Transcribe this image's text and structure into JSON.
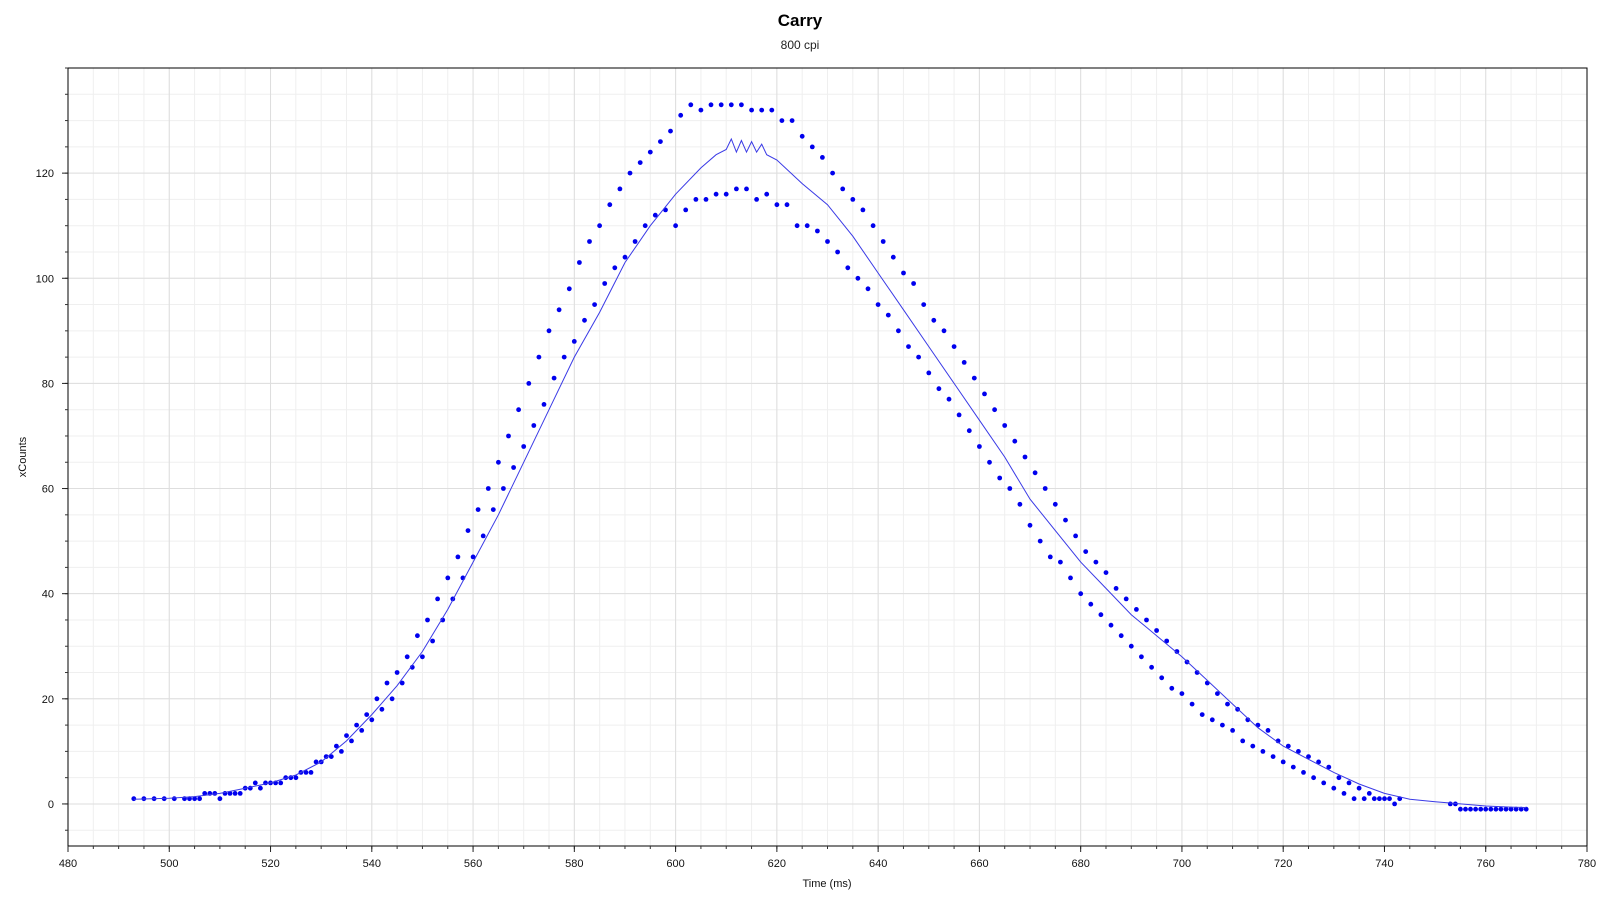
{
  "chart_data": {
    "type": "scatter",
    "title": "Carry",
    "subtitle": "800 cpi",
    "xlabel": "Time (ms)",
    "ylabel": "xCounts",
    "xlim": [
      480,
      780
    ],
    "ylim": [
      -8,
      140
    ],
    "x_ticks": [
      480,
      500,
      520,
      540,
      560,
      580,
      600,
      620,
      640,
      660,
      680,
      700,
      720,
      740,
      760,
      780
    ],
    "y_ticks": [
      0,
      20,
      40,
      60,
      80,
      100,
      120
    ],
    "grid": true,
    "legend": "none",
    "series": [
      {
        "style": "dots",
        "color": "#0000ee",
        "points": [
          [
            493,
            1
          ],
          [
            495,
            1
          ],
          [
            497,
            1
          ],
          [
            499,
            1
          ],
          [
            501,
            1
          ],
          [
            503,
            1
          ],
          [
            505,
            1
          ],
          [
            507,
            2
          ],
          [
            509,
            2
          ],
          [
            511,
            2
          ],
          [
            513,
            2
          ],
          [
            515,
            3
          ],
          [
            517,
            4
          ],
          [
            519,
            4
          ],
          [
            521,
            4
          ],
          [
            523,
            5
          ],
          [
            525,
            5
          ],
          [
            527,
            6
          ],
          [
            529,
            8
          ],
          [
            531,
            9
          ],
          [
            533,
            11
          ],
          [
            535,
            13
          ],
          [
            537,
            15
          ],
          [
            539,
            17
          ],
          [
            541,
            20
          ],
          [
            543,
            23
          ],
          [
            545,
            25
          ],
          [
            547,
            28
          ],
          [
            549,
            32
          ],
          [
            551,
            35
          ],
          [
            553,
            39
          ],
          [
            555,
            43
          ],
          [
            557,
            47
          ],
          [
            559,
            52
          ],
          [
            561,
            56
          ],
          [
            563,
            60
          ],
          [
            565,
            65
          ],
          [
            567,
            70
          ],
          [
            569,
            75
          ],
          [
            571,
            80
          ],
          [
            573,
            85
          ],
          [
            575,
            90
          ],
          [
            577,
            94
          ],
          [
            579,
            98
          ],
          [
            581,
            103
          ],
          [
            583,
            107
          ],
          [
            585,
            110
          ],
          [
            587,
            114
          ],
          [
            589,
            117
          ],
          [
            591,
            120
          ],
          [
            593,
            122
          ],
          [
            595,
            124
          ],
          [
            597,
            126
          ],
          [
            599,
            128
          ],
          [
            601,
            131
          ],
          [
            603,
            133
          ],
          [
            605,
            132
          ],
          [
            607,
            133
          ],
          [
            609,
            133
          ],
          [
            611,
            133
          ],
          [
            613,
            133
          ],
          [
            615,
            132
          ],
          [
            617,
            132
          ],
          [
            619,
            132
          ],
          [
            621,
            130
          ],
          [
            623,
            130
          ],
          [
            625,
            127
          ],
          [
            627,
            125
          ],
          [
            629,
            123
          ],
          [
            631,
            120
          ],
          [
            633,
            117
          ],
          [
            635,
            115
          ],
          [
            637,
            113
          ],
          [
            639,
            110
          ],
          [
            641,
            107
          ],
          [
            643,
            104
          ],
          [
            645,
            101
          ],
          [
            647,
            99
          ],
          [
            649,
            95
          ],
          [
            651,
            92
          ],
          [
            653,
            90
          ],
          [
            655,
            87
          ],
          [
            657,
            84
          ],
          [
            659,
            81
          ],
          [
            661,
            78
          ],
          [
            663,
            75
          ],
          [
            665,
            72
          ],
          [
            667,
            69
          ],
          [
            669,
            66
          ],
          [
            671,
            63
          ],
          [
            673,
            60
          ],
          [
            675,
            57
          ],
          [
            677,
            54
          ],
          [
            679,
            51
          ],
          [
            681,
            48
          ],
          [
            683,
            46
          ],
          [
            685,
            44
          ],
          [
            687,
            41
          ],
          [
            689,
            39
          ],
          [
            691,
            37
          ],
          [
            693,
            35
          ],
          [
            695,
            33
          ],
          [
            697,
            31
          ],
          [
            699,
            29
          ],
          [
            701,
            27
          ],
          [
            703,
            25
          ],
          [
            705,
            23
          ],
          [
            707,
            21
          ],
          [
            709,
            19
          ],
          [
            711,
            18
          ],
          [
            713,
            16
          ],
          [
            715,
            15
          ],
          [
            717,
            14
          ],
          [
            719,
            12
          ],
          [
            721,
            11
          ],
          [
            723,
            10
          ],
          [
            725,
            9
          ],
          [
            727,
            8
          ],
          [
            729,
            7
          ],
          [
            731,
            5
          ],
          [
            733,
            4
          ],
          [
            735,
            3
          ],
          [
            737,
            2
          ],
          [
            739,
            1
          ],
          [
            741,
            1
          ],
          [
            743,
            1
          ],
          [
            753,
            0
          ],
          [
            755,
            -1
          ],
          [
            757,
            -1
          ],
          [
            759,
            -1
          ],
          [
            761,
            -1
          ],
          [
            763,
            -1
          ],
          [
            765,
            -1
          ],
          [
            767,
            -1
          ]
        ]
      },
      {
        "style": "dots",
        "color": "#0000ee",
        "points": [
          [
            504,
            1
          ],
          [
            506,
            1
          ],
          [
            508,
            2
          ],
          [
            510,
            1
          ],
          [
            512,
            2
          ],
          [
            514,
            2
          ],
          [
            516,
            3
          ],
          [
            518,
            3
          ],
          [
            520,
            4
          ],
          [
            522,
            4
          ],
          [
            524,
            5
          ],
          [
            526,
            6
          ],
          [
            528,
            6
          ],
          [
            530,
            8
          ],
          [
            532,
            9
          ],
          [
            534,
            10
          ],
          [
            536,
            12
          ],
          [
            538,
            14
          ],
          [
            540,
            16
          ],
          [
            542,
            18
          ],
          [
            544,
            20
          ],
          [
            546,
            23
          ],
          [
            548,
            26
          ],
          [
            550,
            28
          ],
          [
            552,
            31
          ],
          [
            554,
            35
          ],
          [
            556,
            39
          ],
          [
            558,
            43
          ],
          [
            560,
            47
          ],
          [
            562,
            51
          ],
          [
            564,
            56
          ],
          [
            566,
            60
          ],
          [
            568,
            64
          ],
          [
            570,
            68
          ],
          [
            572,
            72
          ],
          [
            574,
            76
          ],
          [
            576,
            81
          ],
          [
            578,
            85
          ],
          [
            580,
            88
          ],
          [
            582,
            92
          ],
          [
            584,
            95
          ],
          [
            586,
            99
          ],
          [
            588,
            102
          ],
          [
            590,
            104
          ],
          [
            592,
            107
          ],
          [
            594,
            110
          ],
          [
            596,
            112
          ],
          [
            598,
            113
          ],
          [
            600,
            110
          ],
          [
            602,
            113
          ],
          [
            604,
            115
          ],
          [
            606,
            115
          ],
          [
            608,
            116
          ],
          [
            610,
            116
          ],
          [
            612,
            117
          ],
          [
            614,
            117
          ],
          [
            616,
            115
          ],
          [
            618,
            116
          ],
          [
            620,
            114
          ],
          [
            622,
            114
          ],
          [
            624,
            110
          ],
          [
            626,
            110
          ],
          [
            628,
            109
          ],
          [
            630,
            107
          ],
          [
            632,
            105
          ],
          [
            634,
            102
          ],
          [
            636,
            100
          ],
          [
            638,
            98
          ],
          [
            640,
            95
          ],
          [
            642,
            93
          ],
          [
            644,
            90
          ],
          [
            646,
            87
          ],
          [
            648,
            85
          ],
          [
            650,
            82
          ],
          [
            652,
            79
          ],
          [
            654,
            77
          ],
          [
            656,
            74
          ],
          [
            658,
            71
          ],
          [
            660,
            68
          ],
          [
            662,
            65
          ],
          [
            664,
            62
          ],
          [
            666,
            60
          ],
          [
            668,
            57
          ],
          [
            670,
            53
          ],
          [
            672,
            50
          ],
          [
            674,
            47
          ],
          [
            676,
            46
          ],
          [
            678,
            43
          ],
          [
            680,
            40
          ],
          [
            682,
            38
          ],
          [
            684,
            36
          ],
          [
            686,
            34
          ],
          [
            688,
            32
          ],
          [
            690,
            30
          ],
          [
            692,
            28
          ],
          [
            694,
            26
          ],
          [
            696,
            24
          ],
          [
            698,
            22
          ],
          [
            700,
            21
          ],
          [
            702,
            19
          ],
          [
            704,
            17
          ],
          [
            706,
            16
          ],
          [
            708,
            15
          ],
          [
            710,
            14
          ],
          [
            712,
            12
          ],
          [
            714,
            11
          ],
          [
            716,
            10
          ],
          [
            718,
            9
          ],
          [
            720,
            8
          ],
          [
            722,
            7
          ],
          [
            724,
            6
          ],
          [
            726,
            5
          ],
          [
            728,
            4
          ],
          [
            730,
            3
          ],
          [
            732,
            2
          ],
          [
            734,
            1
          ],
          [
            736,
            1
          ],
          [
            738,
            1
          ],
          [
            740,
            1
          ],
          [
            742,
            0
          ],
          [
            754,
            0
          ],
          [
            756,
            -1
          ],
          [
            758,
            -1
          ],
          [
            760,
            -1
          ],
          [
            762,
            -1
          ],
          [
            764,
            -1
          ],
          [
            766,
            -1
          ],
          [
            768,
            -1
          ]
        ]
      },
      {
        "style": "line",
        "color": "#3a3ae6",
        "points": [
          [
            493,
            0.9
          ],
          [
            500,
            1.1
          ],
          [
            505,
            1.4
          ],
          [
            510,
            2
          ],
          [
            515,
            3
          ],
          [
            520,
            4
          ],
          [
            525,
            5.5
          ],
          [
            530,
            8
          ],
          [
            535,
            12
          ],
          [
            540,
            17
          ],
          [
            545,
            22.5
          ],
          [
            550,
            29
          ],
          [
            555,
            37
          ],
          [
            560,
            46
          ],
          [
            565,
            55
          ],
          [
            570,
            65
          ],
          [
            575,
            75
          ],
          [
            580,
            85
          ],
          [
            585,
            93.5
          ],
          [
            590,
            103
          ],
          [
            595,
            110
          ],
          [
            600,
            116
          ],
          [
            605,
            121
          ],
          [
            608,
            123.5
          ],
          [
            610,
            124.5
          ],
          [
            611,
            126.5
          ],
          [
            612,
            124
          ],
          [
            613,
            126.2
          ],
          [
            614,
            124
          ],
          [
            615,
            126
          ],
          [
            616,
            124
          ],
          [
            617,
            125.5
          ],
          [
            618,
            123.5
          ],
          [
            620,
            122.5
          ],
          [
            625,
            118
          ],
          [
            630,
            114
          ],
          [
            635,
            108
          ],
          [
            640,
            101
          ],
          [
            645,
            94
          ],
          [
            650,
            87
          ],
          [
            655,
            80
          ],
          [
            660,
            73
          ],
          [
            665,
            66
          ],
          [
            670,
            58
          ],
          [
            675,
            52
          ],
          [
            680,
            46
          ],
          [
            685,
            41
          ],
          [
            690,
            36
          ],
          [
            695,
            32
          ],
          [
            700,
            28
          ],
          [
            705,
            23.5
          ],
          [
            710,
            19
          ],
          [
            715,
            14.5
          ],
          [
            720,
            11
          ],
          [
            725,
            8.5
          ],
          [
            730,
            6
          ],
          [
            735,
            3.8
          ],
          [
            740,
            2
          ],
          [
            745,
            0.9
          ],
          [
            750,
            0.4
          ],
          [
            755,
            0
          ],
          [
            760,
            -0.4
          ],
          [
            765,
            -0.6
          ],
          [
            768,
            -0.7
          ]
        ]
      }
    ]
  }
}
